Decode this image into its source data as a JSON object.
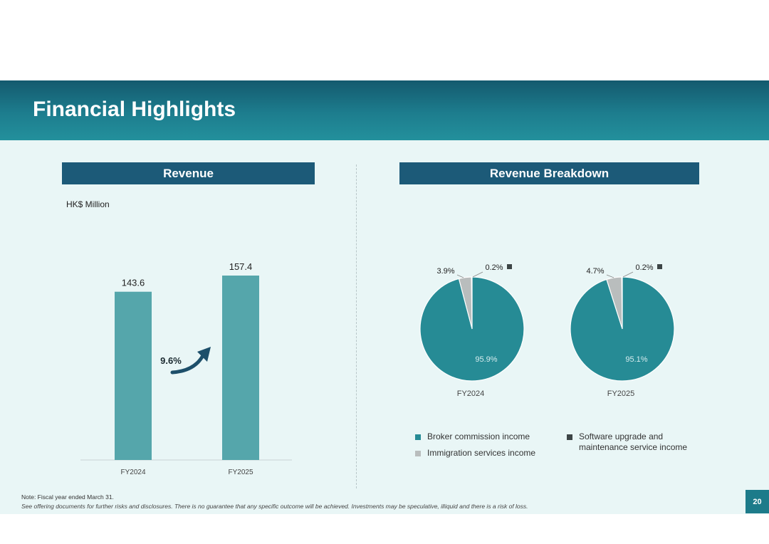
{
  "title": "Financial Highlights",
  "revenue_panel": {
    "heading": "Revenue",
    "unit": "HK$ Million",
    "growth_label": "9.6%"
  },
  "breakdown_panel": {
    "heading": "Revenue Breakdown"
  },
  "colors": {
    "teal": "#268b95",
    "bar": "#55a6ab",
    "gray": "#b9bdbd",
    "dark": "#3d4546",
    "header": "#1c5a78"
  },
  "chart_data": [
    {
      "type": "bar",
      "title": "Revenue",
      "ylabel": "HK$ Million",
      "categories": [
        "FY2024",
        "FY2025"
      ],
      "values": [
        143.6,
        157.4
      ],
      "value_labels": [
        "143.6",
        "157.4"
      ],
      "annotation": "9.6%"
    },
    {
      "type": "pie",
      "xlabel": "FY2024",
      "labels": [
        "Broker commission income",
        "Immigration services income",
        "Software upgrade and maintenance service income"
      ],
      "values": [
        95.9,
        3.9,
        0.2
      ],
      "value_labels": [
        "95.9%",
        "3.9%",
        "0.2%"
      ]
    },
    {
      "type": "pie",
      "xlabel": "FY2025",
      "labels": [
        "Broker commission income",
        "Immigration services income",
        "Software upgrade and maintenance service income"
      ],
      "values": [
        95.1,
        4.7,
        0.2
      ],
      "value_labels": [
        "95.1%",
        "4.7%",
        "0.2%"
      ]
    }
  ],
  "legend": [
    {
      "label": "Broker commission income",
      "color": "#268b95"
    },
    {
      "label": "Immigration services income",
      "color": "#b9bdbd"
    },
    {
      "label": "Software upgrade and maintenance service income",
      "color": "#3d4546"
    }
  ],
  "footer": {
    "note": "Note: Fiscal year ended March 31.",
    "disclaimer": "See offering documents for further risks and disclosures. There is no guarantee that any specific outcome will be achieved. Investments may be speculative, illiquid and there is a risk of loss.",
    "page_number": "20"
  }
}
